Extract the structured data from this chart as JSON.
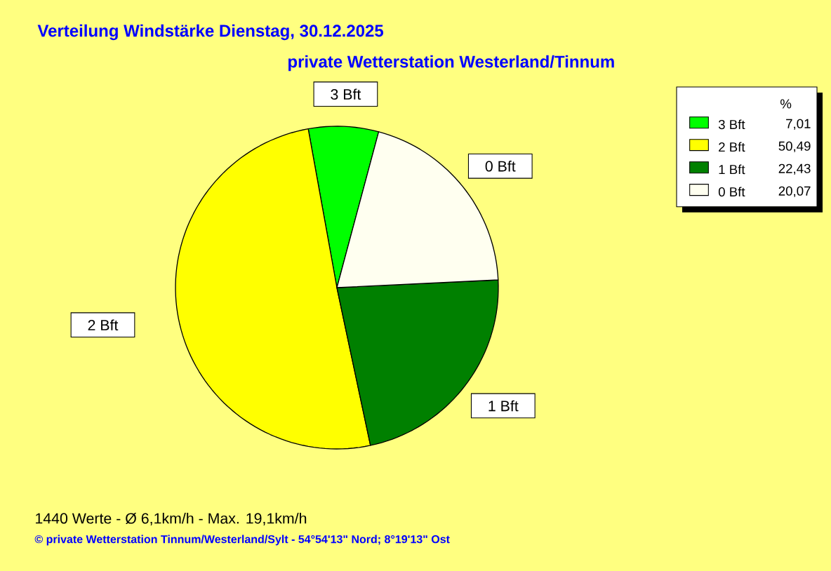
{
  "chart_data": {
    "type": "pie",
    "title": "Verteilung Windstärke  Dienstag, 30.12.2025",
    "subtitle": "private Wetterstation Westerland/Tinnum",
    "categories": [
      "3 Bft",
      "2 Bft",
      "1 Bft",
      "0 Bft"
    ],
    "values": [
      7.01,
      50.49,
      22.43,
      20.07
    ],
    "value_labels": [
      "7,01",
      "50,49",
      "22,43",
      "20,07"
    ],
    "colors": [
      "#00ff00",
      "#ffff00",
      "#008000",
      "#fffff0"
    ],
    "legend": "top right",
    "legend_title": "%",
    "annotations": [
      "1440 Werte   -   Ø 6,1km/h  -  Max. 19,1km/h",
      "© private Wetterstation Tinnum/Westerland/Sylt   -   54°54'13\" Nord; 8°19'13\" Ost"
    ]
  }
}
